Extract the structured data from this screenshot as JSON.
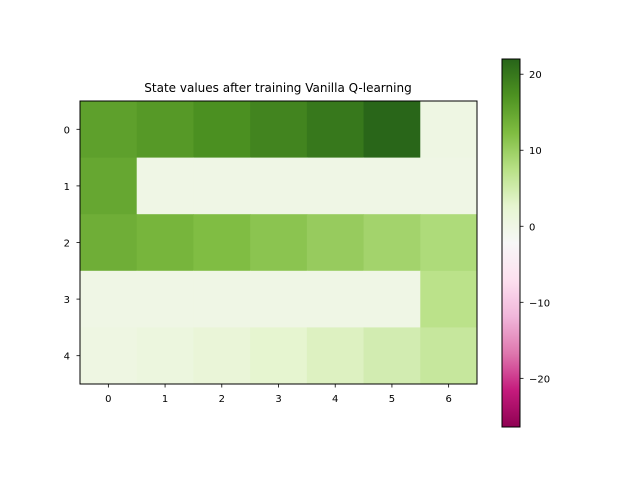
{
  "chart_data": {
    "type": "heatmap",
    "title": "State values after training Vanilla Q-learning",
    "xlabel": "",
    "ylabel": "",
    "x_ticks": [
      "0",
      "1",
      "2",
      "3",
      "4",
      "5",
      "6"
    ],
    "y_ticks": [
      "0",
      "1",
      "2",
      "3",
      "4"
    ],
    "values": [
      [
        15.5,
        16.3,
        17.4,
        18.6,
        19.9,
        21.8,
        0.3
      ],
      [
        14.7,
        0.0,
        0.0,
        0.0,
        0.0,
        0.0,
        0.0
      ],
      [
        13.9,
        13.1,
        12.2,
        11.3,
        10.3,
        9.3,
        8.3
      ],
      [
        0.0,
        0.0,
        0.0,
        0.0,
        0.0,
        0.0,
        7.2
      ],
      [
        0.4,
        0.9,
        1.6,
        2.6,
        3.6,
        4.7,
        6.0
      ]
    ],
    "colormap": "PiYG",
    "vmin": -26.4,
    "vmax": 22.0,
    "colorbar": {
      "ticks": [
        20,
        10,
        0,
        -10,
        -20
      ],
      "tick_labels": [
        "20",
        "10",
        "0",
        "−10",
        "−20"
      ]
    },
    "grid": false
  }
}
